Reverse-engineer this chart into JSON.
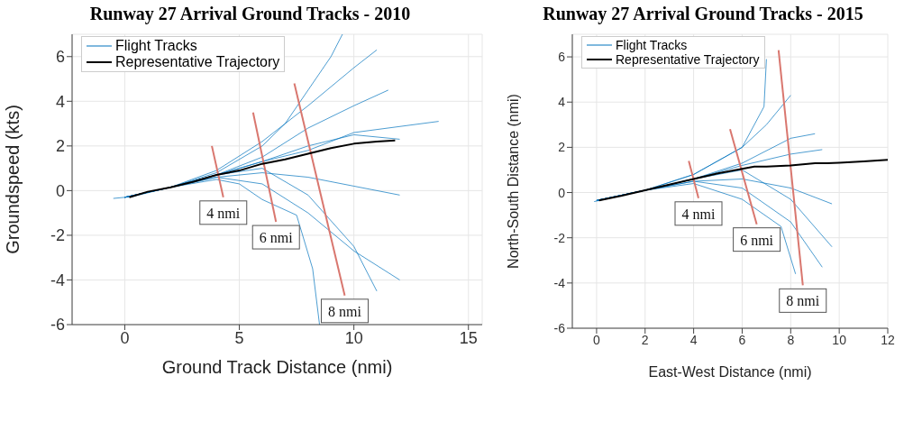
{
  "chart_data": [
    {
      "type": "line",
      "title": "Runway 27 Arrival Ground Tracks - 2010",
      "xlabel": "Ground Track Distance (nmi)",
      "ylabel": "Groundspeed (kts)",
      "xlim": [
        -2.3,
        15.6
      ],
      "ylim": [
        -6,
        7
      ],
      "xticks": [
        0,
        5,
        10,
        15
      ],
      "yticks": [
        -6,
        -4,
        -2,
        0,
        2,
        4,
        6
      ],
      "grid": true,
      "legend": "top left",
      "series": [
        {
          "name": "Flight Tracks",
          "color": "#0072bd",
          "x": [
            -0.5,
            0,
            2,
            4,
            6,
            8,
            10,
            12
          ],
          "values": [
            -0.35,
            -0.3,
            0.15,
            0.7,
            1.3,
            2.0,
            2.5,
            2.3
          ]
        },
        {
          "color": "#0072bd",
          "x": [
            0.2,
            2,
            4,
            6,
            8,
            10,
            11
          ],
          "values": [
            -0.3,
            0.15,
            0.9,
            2.2,
            3.8,
            5.5,
            6.3
          ]
        },
        {
          "color": "#0072bd",
          "x": [
            0,
            2,
            4,
            6,
            8,
            10,
            12
          ],
          "values": [
            -0.3,
            0.15,
            0.6,
            0.8,
            0.6,
            0.2,
            -0.2
          ]
        },
        {
          "color": "#0072bd",
          "x": [
            0,
            2,
            4,
            6,
            8,
            10,
            12
          ],
          "values": [
            -0.3,
            0.15,
            0.6,
            0.3,
            -1.0,
            -2.7,
            -4.0
          ]
        },
        {
          "color": "#0072bd",
          "x": [
            0,
            2,
            4,
            5,
            6,
            7.5,
            8.2,
            8.5
          ],
          "values": [
            -0.3,
            0.15,
            0.5,
            0.3,
            -0.4,
            -1.1,
            -3.5,
            -6.0
          ]
        },
        {
          "color": "#0072bd",
          "x": [
            0,
            2,
            4,
            6,
            8,
            10,
            11.5
          ],
          "values": [
            -0.3,
            0.15,
            0.7,
            1.5,
            2.8,
            3.8,
            4.5
          ]
        },
        {
          "color": "#0072bd",
          "x": [
            0,
            2,
            4,
            6,
            8,
            10,
            11
          ],
          "values": [
            -0.3,
            0.15,
            0.7,
            1.0,
            -0.2,
            -2.5,
            -4.5
          ]
        },
        {
          "color": "#0072bd",
          "x": [
            0,
            2,
            4,
            6,
            8,
            10,
            13.7
          ],
          "values": [
            -0.3,
            0.15,
            0.7,
            1.3,
            1.8,
            2.6,
            3.1
          ]
        },
        {
          "color": "#0072bd",
          "x": [
            0,
            2,
            4,
            6,
            7,
            8,
            9,
            9.5
          ],
          "values": [
            -0.3,
            0.15,
            0.8,
            2.0,
            3.0,
            4.5,
            6.0,
            7.0
          ]
        },
        {
          "color": "#d9776f",
          "x": [
            3.8,
            4.3
          ],
          "values": [
            2.0,
            -0.3
          ]
        },
        {
          "color": "#d9776f",
          "x": [
            5.6,
            6.6
          ],
          "values": [
            3.5,
            -1.4
          ]
        },
        {
          "color": "#d9776f",
          "x": [
            7.4,
            9.6
          ],
          "values": [
            4.8,
            -4.7
          ]
        },
        {
          "name": "Representative Trajectory",
          "color": "#000000",
          "x": [
            0.2,
            1,
            2,
            3,
            4,
            5,
            6,
            7,
            8,
            9,
            10,
            11,
            11.8
          ],
          "values": [
            -0.3,
            -0.05,
            0.15,
            0.4,
            0.7,
            0.9,
            1.2,
            1.4,
            1.65,
            1.9,
            2.1,
            2.2,
            2.25
          ]
        }
      ],
      "annotations": [
        {
          "text": "4 nmi",
          "x": 4.3,
          "y": -0.3
        },
        {
          "text": "6 nmi",
          "x": 6.6,
          "y": -1.4
        },
        {
          "text": "8 nmi",
          "x": 9.6,
          "y": -4.7
        }
      ]
    },
    {
      "type": "line",
      "title": "Runway 27 Arrival Ground Tracks - 2015",
      "xlabel": "East-West Distance (nmi)",
      "ylabel": "North-South Distance (nmi)",
      "xlim": [
        -1,
        12
      ],
      "ylim": [
        -6,
        7
      ],
      "xticks": [
        0,
        2,
        4,
        6,
        8,
        10,
        12
      ],
      "yticks": [
        -6,
        -4,
        -2,
        0,
        2,
        4,
        6
      ],
      "grid": true,
      "legend": "top left",
      "series": [
        {
          "name": "Flight Tracks",
          "color": "#0072bd",
          "x": [
            -0.1,
            2,
            4,
            6,
            8,
            9.3
          ],
          "values": [
            -0.4,
            0.1,
            0.6,
            1.2,
            1.7,
            1.9
          ]
        },
        {
          "color": "#0072bd",
          "x": [
            0,
            2,
            4,
            6,
            7,
            8
          ],
          "values": [
            -0.35,
            0.1,
            0.8,
            2.0,
            3.0,
            4.3
          ]
        },
        {
          "color": "#0072bd",
          "x": [
            0,
            2,
            4,
            6,
            8,
            9.7
          ],
          "values": [
            -0.35,
            0.1,
            0.5,
            0.6,
            0.2,
            -0.5
          ]
        },
        {
          "color": "#0072bd",
          "x": [
            0,
            2,
            4,
            6,
            8,
            9.3
          ],
          "values": [
            -0.35,
            0.1,
            0.5,
            0.2,
            -1.3,
            -3.3
          ]
        },
        {
          "color": "#0072bd",
          "x": [
            0,
            2,
            4,
            6,
            7.6,
            8.2
          ],
          "values": [
            -0.35,
            0.1,
            0.4,
            -0.3,
            -1.5,
            -3.6
          ]
        },
        {
          "color": "#0072bd",
          "x": [
            0,
            2,
            4,
            6,
            8,
            9
          ],
          "values": [
            -0.35,
            0.1,
            0.6,
            1.3,
            2.4,
            2.6
          ]
        },
        {
          "color": "#0072bd",
          "x": [
            0,
            2,
            4,
            6,
            8,
            9.7
          ],
          "values": [
            -0.35,
            0.1,
            0.6,
            1.0,
            -0.3,
            -2.4
          ]
        },
        {
          "color": "#0072bd",
          "x": [
            0,
            2,
            4,
            6,
            6.9,
            7.0
          ],
          "values": [
            -0.35,
            0.1,
            0.8,
            2.0,
            3.8,
            5.9
          ]
        },
        {
          "color": "#d9776f",
          "x": [
            3.8,
            4.2
          ],
          "values": [
            1.4,
            -0.25
          ]
        },
        {
          "color": "#d9776f",
          "x": [
            5.5,
            6.6
          ],
          "values": [
            2.8,
            -1.4
          ]
        },
        {
          "color": "#d9776f",
          "x": [
            7.5,
            8.5
          ],
          "values": [
            6.3,
            -4.1
          ]
        },
        {
          "name": "Representative Trajectory",
          "color": "#000000",
          "x": [
            0.1,
            1,
            2,
            3,
            4,
            5,
            6,
            6.5,
            7,
            8,
            9,
            9.5,
            10,
            11,
            12
          ],
          "values": [
            -0.35,
            -0.15,
            0.1,
            0.35,
            0.6,
            0.85,
            1.05,
            1.15,
            1.15,
            1.2,
            1.3,
            1.3,
            1.32,
            1.38,
            1.45
          ]
        }
      ],
      "annotations": [
        {
          "text": "4 nmi",
          "x": 4.2,
          "y": -0.25
        },
        {
          "text": "6 nmi",
          "x": 6.6,
          "y": -1.4
        },
        {
          "text": "8 nmi",
          "x": 8.5,
          "y": -4.1
        }
      ]
    }
  ]
}
